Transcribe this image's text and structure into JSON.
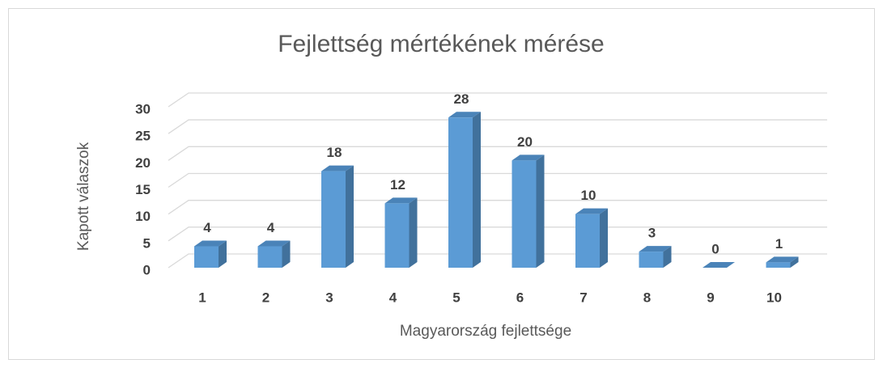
{
  "chart_data": {
    "type": "bar3d",
    "title": "Fejlettség mértékének mérése",
    "x_label": "Magyarország fejlettsége",
    "y_label": "Kapott válaszok",
    "categories": [
      "1",
      "2",
      "3",
      "4",
      "5",
      "6",
      "7",
      "8",
      "9",
      "10"
    ],
    "values": [
      4,
      4,
      18,
      12,
      28,
      20,
      10,
      3,
      0,
      1
    ],
    "color": "#5b9bd5",
    "ylim": [
      0,
      30
    ],
    "yticks": [
      0,
      5,
      10,
      15,
      20,
      25,
      30
    ],
    "grid": true
  }
}
